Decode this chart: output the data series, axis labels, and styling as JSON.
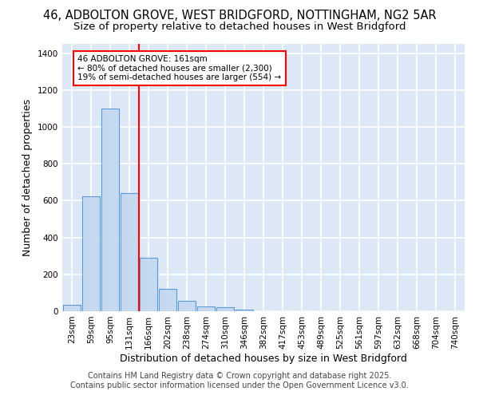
{
  "title_line1": "46, ADBOLTON GROVE, WEST BRIDGFORD, NOTTINGHAM, NG2 5AR",
  "title_line2": "Size of property relative to detached houses in West Bridgford",
  "xlabel": "Distribution of detached houses by size in West Bridgford",
  "ylabel": "Number of detached properties",
  "categories": [
    "23sqm",
    "59sqm",
    "95sqm",
    "131sqm",
    "166sqm",
    "202sqm",
    "238sqm",
    "274sqm",
    "310sqm",
    "346sqm",
    "382sqm",
    "417sqm",
    "453sqm",
    "489sqm",
    "525sqm",
    "561sqm",
    "597sqm",
    "632sqm",
    "668sqm",
    "704sqm",
    "740sqm"
  ],
  "bar_values": [
    35,
    625,
    1100,
    640,
    290,
    120,
    55,
    25,
    22,
    8,
    0,
    0,
    0,
    0,
    0,
    0,
    0,
    0,
    0,
    0,
    0
  ],
  "bar_color": "#c5d9f0",
  "bar_edge_color": "#5b9bd5",
  "background_color": "#dce8f5",
  "grid_color": "#ffffff",
  "vline_color": "red",
  "annotation_title": "46 ADBOLTON GROVE: 161sqm",
  "annotation_line1": "← 80% of detached houses are smaller (2,300)",
  "annotation_line2": "19% of semi-detached houses are larger (554) →",
  "ylim": [
    0,
    1450
  ],
  "yticks": [
    0,
    200,
    400,
    600,
    800,
    1000,
    1200,
    1400
  ],
  "footer_line1": "Contains HM Land Registry data © Crown copyright and database right 2025.",
  "footer_line2": "Contains public sector information licensed under the Open Government Licence v3.0.",
  "title_fontsize": 10.5,
  "subtitle_fontsize": 9.5,
  "axis_label_fontsize": 9,
  "tick_fontsize": 7.5,
  "footer_fontsize": 7
}
